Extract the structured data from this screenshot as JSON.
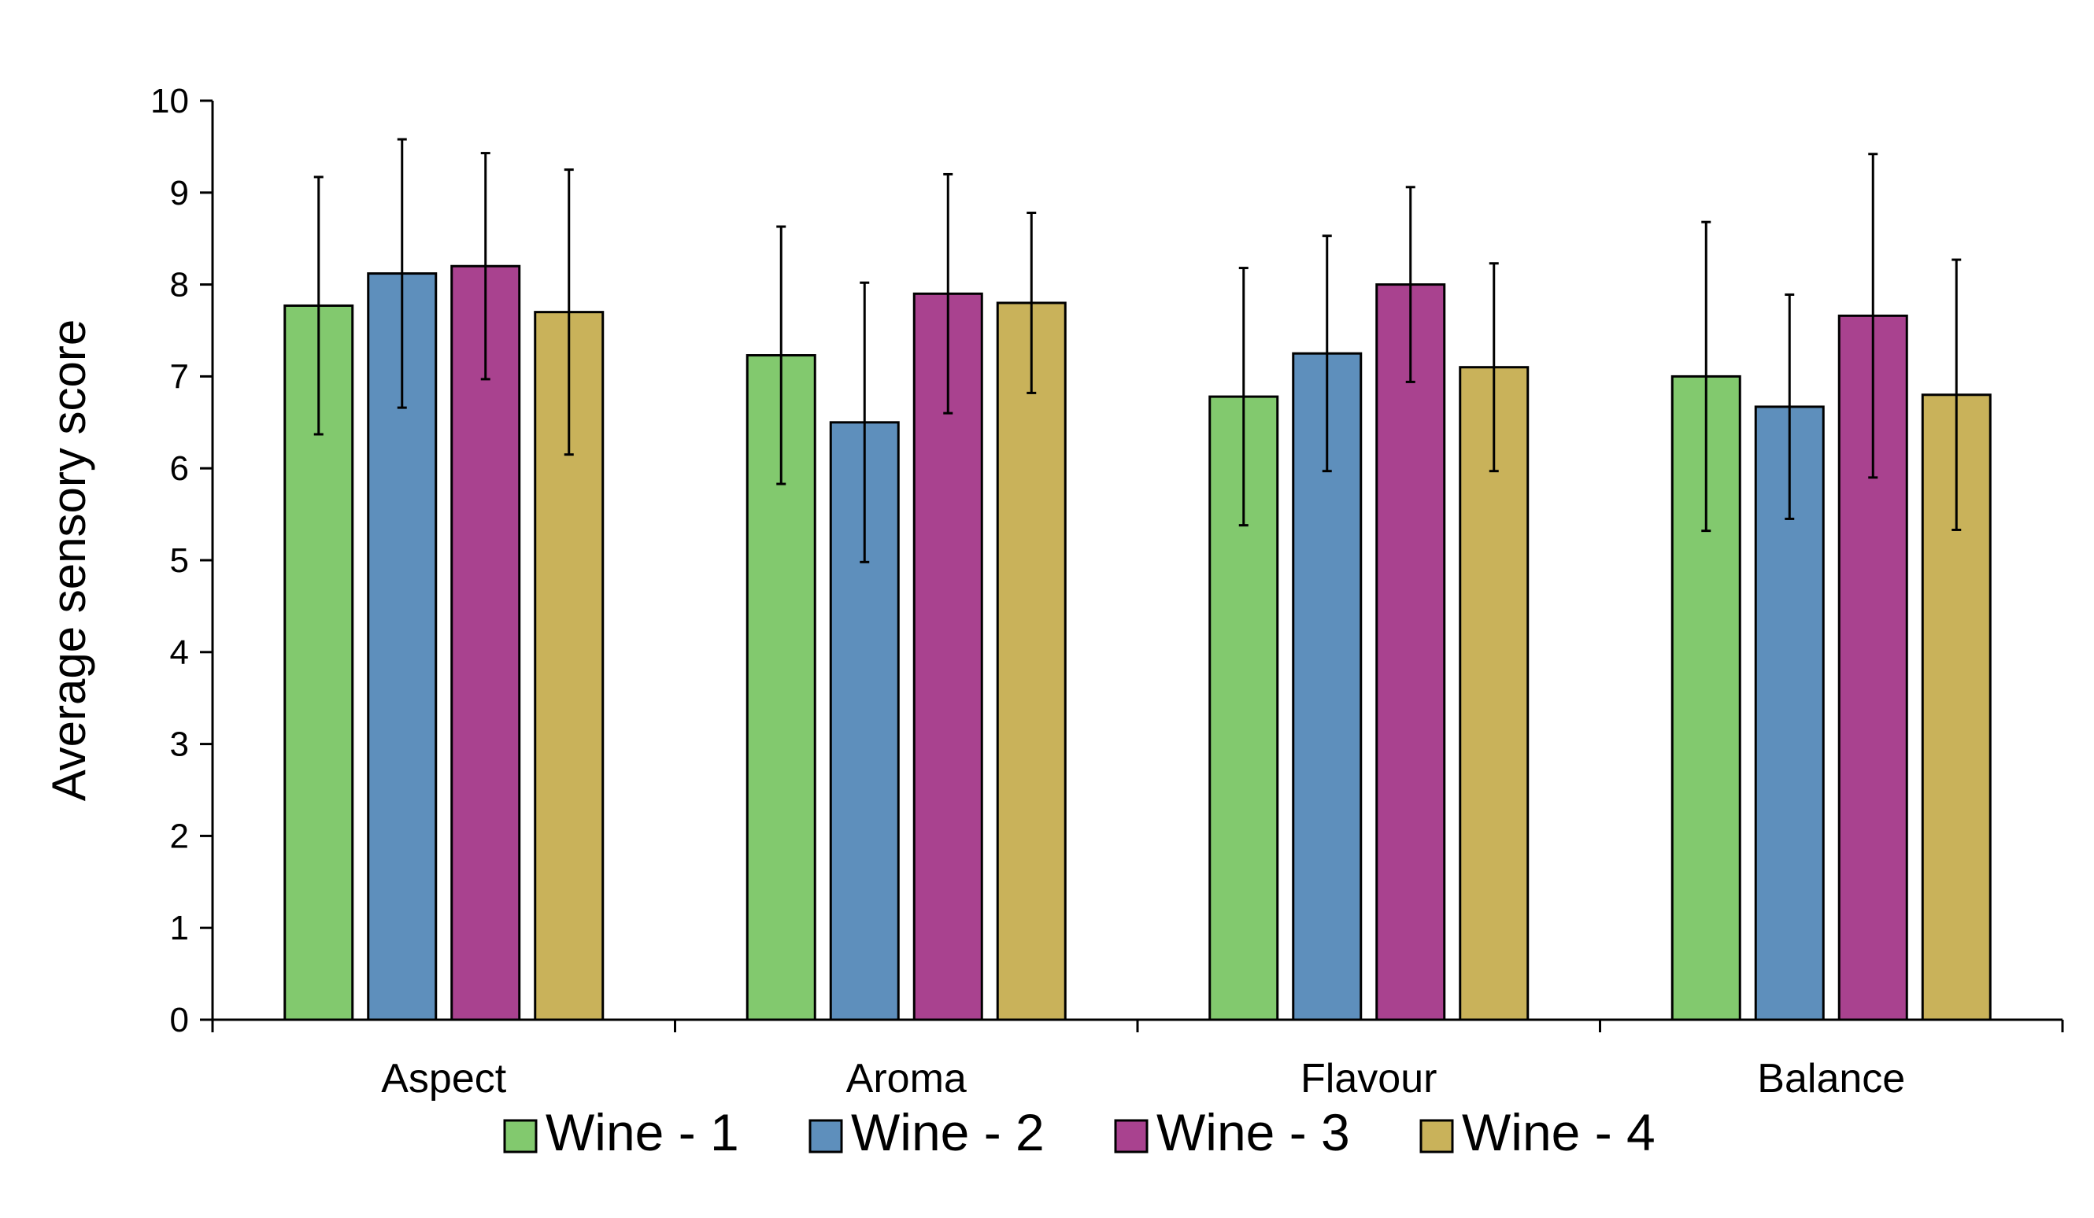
{
  "chart_data": {
    "type": "bar",
    "title": "",
    "xlabel": "",
    "ylabel": "Average sensory score",
    "ylim": [
      0,
      10
    ],
    "yticks": [
      "0",
      "1",
      "2",
      "3",
      "4",
      "5",
      "6",
      "7",
      "8",
      "9",
      "10"
    ],
    "grid": false,
    "legend_position": "bottom",
    "categories": [
      "Aspect",
      "Aroma",
      "Flavour",
      "Balance"
    ],
    "series": [
      {
        "name": "Wine - 1",
        "color": "#82c96e",
        "values": [
          7.77,
          7.23,
          6.78,
          7.0
        ],
        "errors": [
          1.4,
          1.4,
          1.4,
          1.68
        ]
      },
      {
        "name": "Wine - 2",
        "color": "#5e8fbc",
        "values": [
          8.12,
          6.5,
          7.25,
          6.67
        ],
        "errors": [
          1.46,
          1.52,
          1.28,
          1.22
        ]
      },
      {
        "name": "Wine - 3",
        "color": "#a9428f",
        "values": [
          8.2,
          7.9,
          8.0,
          7.66
        ],
        "errors": [
          1.23,
          1.3,
          1.06,
          1.76
        ]
      },
      {
        "name": "Wine - 4",
        "color": "#c9b25a",
        "values": [
          7.7,
          7.8,
          7.1,
          6.8
        ],
        "errors": [
          1.55,
          0.98,
          1.13,
          1.47
        ]
      }
    ]
  }
}
